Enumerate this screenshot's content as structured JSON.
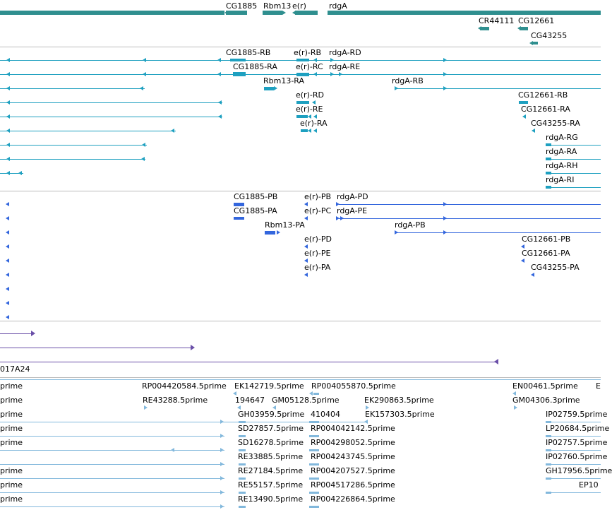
{
  "colors": {
    "gene": "#2f8f8f",
    "transcript": "#1ea0c0",
    "protein": "#3366dd",
    "genomic": "#6a4fa8",
    "est": "#82b8dc",
    "separator": "#bcbcbc"
  },
  "tracks": {
    "genes": [
      "CG1885",
      "Rbm13",
      "e(r)",
      "rdgA",
      "CR44111",
      "CG12661",
      "CG43255"
    ],
    "transcripts": [
      "CG1885-RB",
      "e(r)-RB",
      "rdgA-RD",
      "CG1885-RA",
      "e(r)-RC",
      "rdgA-RE",
      "Rbm13-RA",
      "rdgA-RB",
      "e(r)-RD",
      "CG12661-RB",
      "e(r)-RE",
      "CG12661-RA",
      "e(r)-RA",
      "CG43255-RA",
      "rdgA-RG",
      "rdgA-RA",
      "rdgA-RH",
      "rdgA-RI"
    ],
    "proteins": [
      "CG1885-PB",
      "e(r)-PB",
      "rdgA-PD",
      "CG1885-PA",
      "e(r)-PC",
      "rdgA-PE",
      "Rbm13-PA",
      "rdgA-PB",
      "e(r)-PD",
      "CG12661-PB",
      "e(r)-PE",
      "CG12661-PA",
      "e(r)-PA",
      "CG43255-PA"
    ],
    "genomic": [
      "017A24"
    ],
    "ests": [
      "prime",
      "RP004420584.5prime",
      "EK142719.5prime",
      "RP004055870.5prime",
      "EN00461.5prime",
      "E",
      "prime",
      "RE43288.5prime",
      "194647",
      "GM05128.5prime",
      "EK290863.5prime",
      "GM04306.3prime",
      "prime",
      "GH03959.5prime",
      "410404",
      "EK157303.5prime",
      "IP02759.5prime",
      "prime",
      "SD27857.5prime",
      "RP004042142.5prime",
      "LP20684.5prime",
      "prime",
      "SD16278.5prime",
      "RP004298052.5prime",
      "IP02757.5prime",
      "RE33885.5prime",
      "RP004243745.5prime",
      "IP02760.5prime",
      "prime",
      "RE27184.5prime",
      "RP004207527.5prime",
      "GH17956.5prime",
      "prime",
      "RE55157.5prime",
      "RP004517286.5prime",
      "EP10",
      "prime",
      "RE13490.5prime",
      "RP004226864.5prime"
    ]
  }
}
